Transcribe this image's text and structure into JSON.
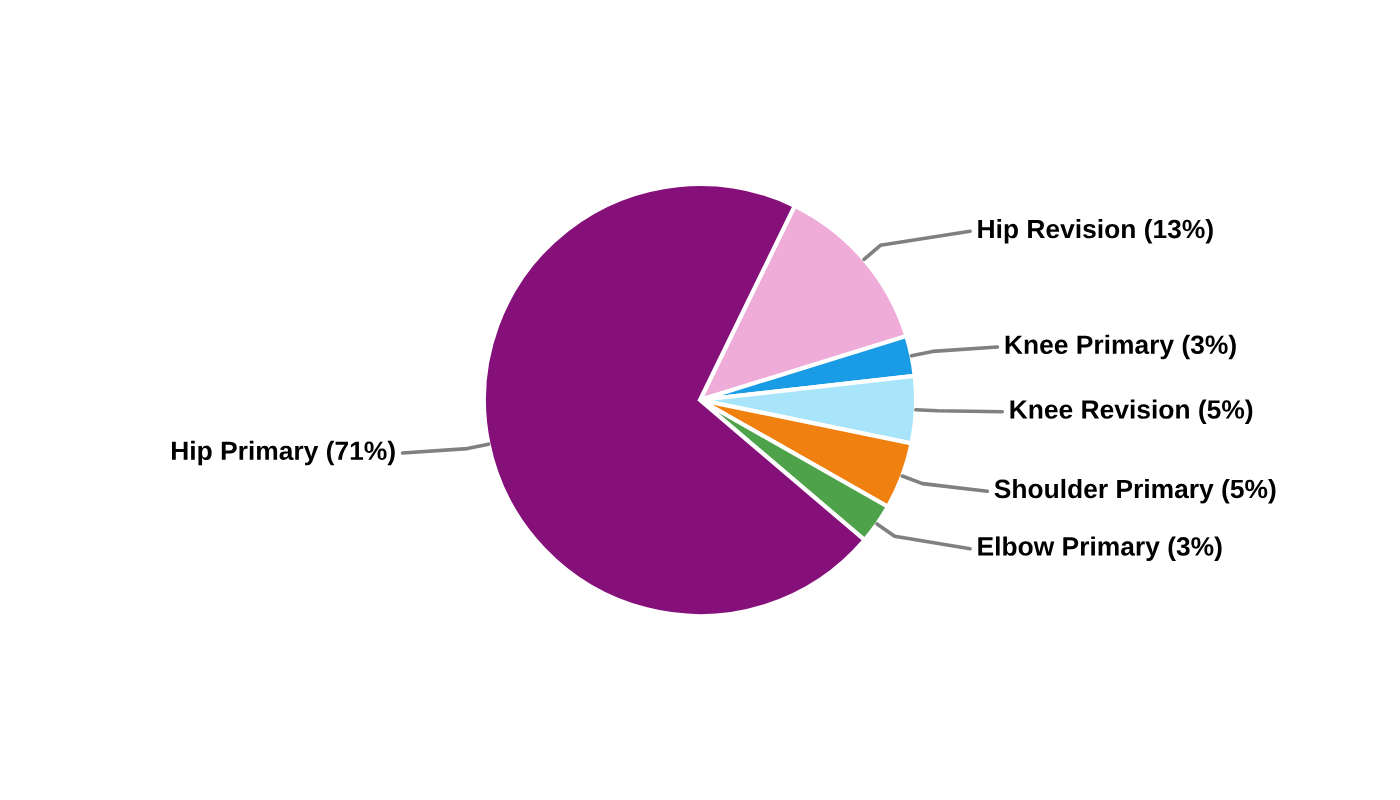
{
  "chart_data": {
    "type": "pie",
    "categories": [
      "Hip Revision (13%)",
      "Knee Primary (3%)",
      "Knee Revision (5%)",
      "Shoulder Primary (5%)",
      "Elbow Primary (3%)",
      "Hip Primary (71%)"
    ],
    "values": [
      13,
      3,
      5,
      5,
      3,
      71
    ],
    "colors": [
      "#f0acd8",
      "#1a9be6",
      "#a8e4fa",
      "#f0800f",
      "#4ea24a",
      "#85107a"
    ],
    "legend": false
  }
}
